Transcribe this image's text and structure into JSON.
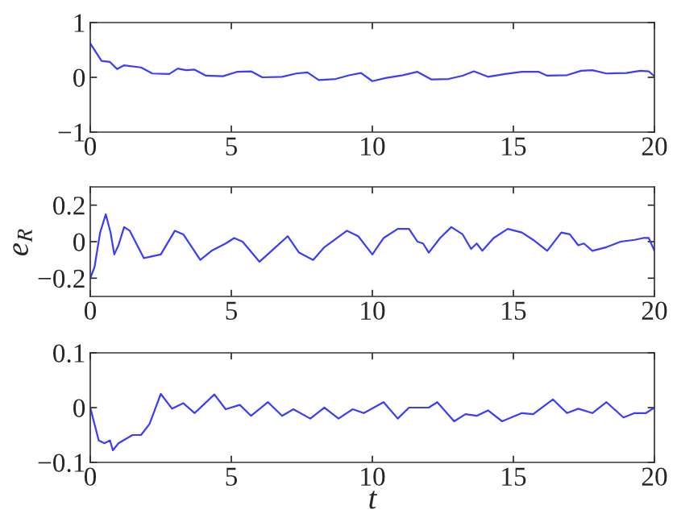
{
  "chart_data": [
    {
      "type": "line",
      "x": [
        0,
        0.4,
        0.7,
        0.95,
        1.2,
        1.8,
        2.2,
        2.8,
        3.1,
        3.4,
        3.7,
        4.1,
        4.7,
        5.2,
        5.7,
        6.1,
        6.8,
        7.3,
        7.7,
        8.1,
        8.7,
        9.2,
        9.6,
        10.0,
        10.5,
        11.0,
        11.6,
        12.1,
        12.7,
        13.2,
        13.6,
        14.1,
        14.7,
        15.3,
        15.9,
        16.2,
        16.9,
        17.4,
        17.8,
        18.3,
        19.0,
        19.5,
        19.8,
        20
      ],
      "series": [
        {
          "color": "#3c3cff",
          "values": [
            0.62,
            0.3,
            0.28,
            0.15,
            0.22,
            0.18,
            0.07,
            0.06,
            0.16,
            0.13,
            0.14,
            0.03,
            0.02,
            0.1,
            0.11,
            0.0,
            0.01,
            0.07,
            0.09,
            -0.05,
            -0.03,
            0.04,
            0.08,
            -0.07,
            -0.01,
            0.03,
            0.1,
            -0.04,
            -0.03,
            0.03,
            0.11,
            0.01,
            0.06,
            0.1,
            0.1,
            0.03,
            0.04,
            0.12,
            0.13,
            0.07,
            0.08,
            0.12,
            0.11,
            0.02
          ]
        }
      ],
      "xlim": [
        0,
        20
      ],
      "xticks": [
        0,
        5,
        10,
        15,
        20
      ],
      "ylim": [
        -1,
        1
      ],
      "yticks": [
        {
          "value": -1,
          "label": "−1"
        },
        0,
        1
      ],
      "grid": false,
      "line_style": "solid",
      "marker": "none"
    },
    {
      "type": "line",
      "ylabel": "e$_{R}$",
      "x": [
        0,
        0.15,
        0.35,
        0.55,
        0.72,
        0.85,
        1.0,
        1.2,
        1.4,
        1.9,
        2.5,
        3.0,
        3.3,
        3.9,
        4.3,
        4.8,
        5.1,
        5.4,
        6.0,
        6.5,
        7.0,
        7.4,
        7.9,
        8.3,
        9.1,
        9.5,
        10.0,
        10.4,
        10.9,
        11.3,
        11.6,
        11.8,
        12.0,
        12.4,
        12.8,
        13.2,
        13.5,
        13.7,
        13.9,
        14.3,
        14.8,
        15.3,
        15.7,
        16.2,
        16.7,
        17.0,
        17.3,
        17.5,
        17.8,
        18.3,
        18.8,
        19.3,
        19.6,
        19.8,
        20
      ],
      "series": [
        {
          "color": "#3c3cff",
          "values": [
            -0.2,
            -0.14,
            0.05,
            0.15,
            0.05,
            -0.07,
            -0.02,
            0.08,
            0.06,
            -0.09,
            -0.07,
            0.06,
            0.04,
            -0.1,
            -0.05,
            -0.01,
            0.02,
            0.0,
            -0.11,
            -0.04,
            0.03,
            -0.06,
            -0.1,
            -0.03,
            0.06,
            0.03,
            -0.07,
            0.02,
            0.07,
            0.07,
            0.0,
            -0.01,
            -0.06,
            0.02,
            0.08,
            0.04,
            -0.04,
            -0.01,
            -0.05,
            0.02,
            0.07,
            0.05,
            0.01,
            -0.05,
            0.05,
            0.04,
            -0.02,
            -0.01,
            -0.05,
            -0.03,
            0.0,
            0.01,
            0.02,
            0.02,
            -0.05
          ]
        }
      ],
      "xlim": [
        0,
        20
      ],
      "xticks": [
        0,
        5,
        10,
        15,
        20
      ],
      "ylim": [
        -0.3,
        0.3
      ],
      "yticks": [
        {
          "value": -0.2,
          "label": "−0.2"
        },
        0,
        0.2
      ],
      "grid": false,
      "line_style": "solid",
      "marker": "none"
    },
    {
      "type": "line",
      "xlabel": "t",
      "x": [
        0,
        0.3,
        0.5,
        0.7,
        0.8,
        1.0,
        1.5,
        1.8,
        2.1,
        2.5,
        2.9,
        3.3,
        3.7,
        4.4,
        4.8,
        5.3,
        5.7,
        6.3,
        6.8,
        7.2,
        7.8,
        8.3,
        8.8,
        9.3,
        9.7,
        10.4,
        10.9,
        11.3,
        12.0,
        12.3,
        12.9,
        13.3,
        13.7,
        14.1,
        14.6,
        15.3,
        15.7,
        16.4,
        16.9,
        17.3,
        17.8,
        18.3,
        18.9,
        19.3,
        19.7,
        20
      ],
      "series": [
        {
          "color": "#3c3cff",
          "values": [
            0.0,
            -0.06,
            -0.065,
            -0.06,
            -0.078,
            -0.065,
            -0.05,
            -0.05,
            -0.03,
            0.025,
            -0.002,
            0.008,
            -0.01,
            0.024,
            -0.003,
            0.005,
            -0.015,
            0.01,
            -0.015,
            -0.003,
            -0.02,
            0.0,
            -0.02,
            -0.003,
            -0.01,
            0.01,
            -0.02,
            0.0,
            0.0,
            0.01,
            -0.025,
            -0.012,
            -0.015,
            -0.005,
            -0.025,
            -0.01,
            -0.012,
            0.015,
            -0.01,
            -0.002,
            -0.01,
            0.01,
            -0.018,
            -0.01,
            -0.01,
            0.0
          ]
        }
      ],
      "xlim": [
        0,
        20
      ],
      "xticks": [
        0,
        5,
        10,
        15,
        20
      ],
      "ylim": [
        -0.1,
        0.1
      ],
      "yticks": [
        {
          "value": -0.1,
          "label": "−0.1"
        },
        0,
        0.1
      ],
      "grid": false,
      "line_style": "solid",
      "marker": "none"
    }
  ]
}
